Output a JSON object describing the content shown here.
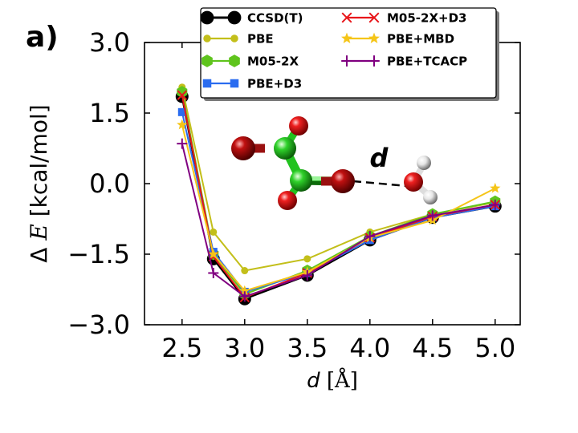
{
  "panel_label": "a)",
  "molecule_label": "d",
  "chart_data": {
    "type": "line",
    "xlabel_italic": "d",
    "xlabel_unit": "[Å]",
    "ylabel_prefix": "Δ",
    "ylabel_italic": "E",
    "ylabel_unit": "[kcal/mol]",
    "xlim": [
      2.2,
      5.2
    ],
    "ylim": [
      -3.0,
      3.0
    ],
    "x_ticks": [
      2.5,
      3.0,
      3.5,
      4.0,
      4.5,
      5.0
    ],
    "x_tick_labels": [
      "2.5",
      "3.0",
      "3.5",
      "4.0",
      "4.5",
      "5.0"
    ],
    "y_ticks": [
      3.0,
      1.5,
      0.0,
      -1.5,
      -3.0
    ],
    "y_tick_labels": [
      "3.0",
      "1.5",
      "0.0",
      "−1.5",
      "−3.0"
    ],
    "grid": false,
    "legend_position": "top-center",
    "x": [
      2.5,
      2.75,
      3.0,
      3.5,
      4.0,
      4.5,
      5.0
    ],
    "series": [
      {
        "name": "CCSD(T)",
        "color": "#000000",
        "marker": "circle",
        "values": [
          1.85,
          -1.6,
          -2.45,
          -1.95,
          -1.2,
          -0.72,
          -0.48
        ]
      },
      {
        "name": "PBE",
        "color": "#c3bf1a",
        "marker": "small-circle",
        "values": [
          2.05,
          -1.03,
          -1.85,
          -1.6,
          -1.03,
          -0.65,
          -0.4
        ]
      },
      {
        "name": "M05-2X",
        "color": "#5fc41d",
        "marker": "hexagon",
        "values": [
          1.95,
          -1.5,
          -2.35,
          -1.85,
          -1.12,
          -0.65,
          -0.38
        ]
      },
      {
        "name": "PBE+D3",
        "color": "#2a6cf0",
        "marker": "square",
        "values": [
          1.52,
          -1.45,
          -2.3,
          -1.9,
          -1.2,
          -0.72,
          -0.48
        ]
      },
      {
        "name": "M05-2X+D3",
        "color": "#e8161a",
        "marker": "x",
        "values": [
          1.88,
          -1.55,
          -2.42,
          -1.9,
          -1.15,
          -0.7,
          -0.45
        ]
      },
      {
        "name": "PBE+MBD",
        "color": "#f5c518",
        "marker": "star",
        "values": [
          1.25,
          -1.5,
          -2.28,
          -1.88,
          -1.15,
          -0.78,
          -0.1
        ]
      },
      {
        "name": "PBE+TCACP",
        "color": "#800080",
        "marker": "plus",
        "values": [
          0.85,
          -1.9,
          -2.4,
          -1.95,
          -1.12,
          -0.68,
          -0.45
        ]
      }
    ]
  }
}
